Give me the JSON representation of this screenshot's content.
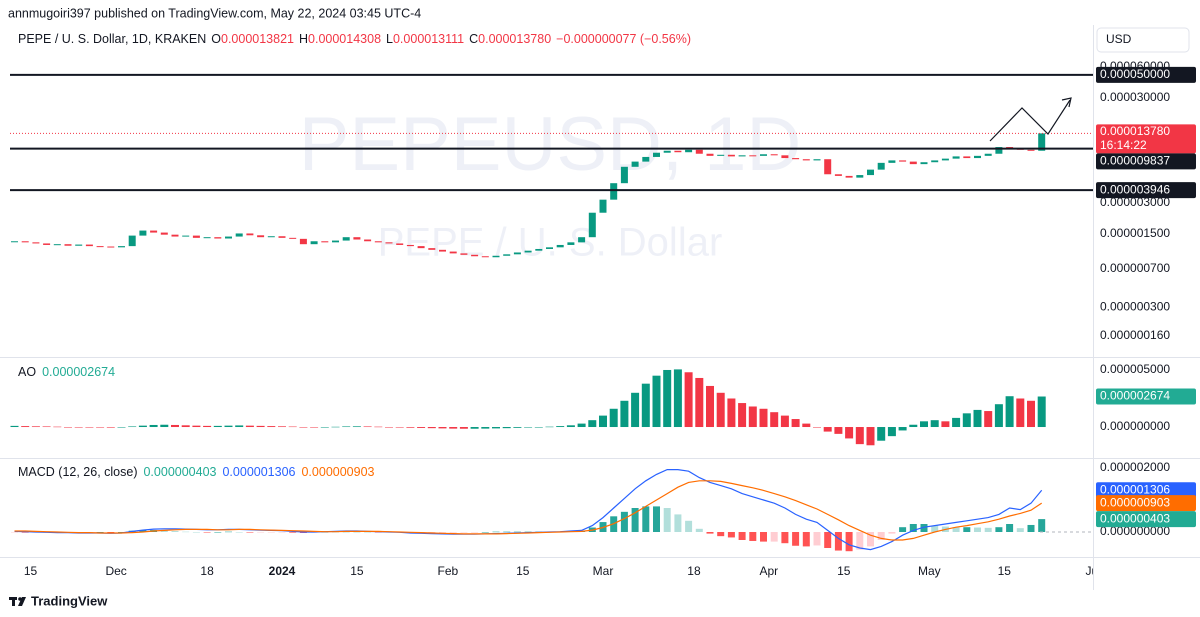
{
  "header": "annmugoiri397 published on TradingView.com, May 22, 2024 03:45 UTC-4",
  "currency": "USD",
  "footer": "TradingView",
  "chart_data": [
    {
      "type": "candlestick",
      "title": "PEPE / U. S. Dollar, 1D, KRAKEN",
      "ohlc": [
        {
          "key": "O",
          "value": 1.3821e-05,
          "label": "0.000013821"
        },
        {
          "key": "H",
          "value": 1.4308e-05,
          "label": "0.000014308"
        },
        {
          "key": "L",
          "value": 1.3111e-05,
          "label": "0.000013111"
        },
        {
          "key": "C",
          "value": 1.378e-05,
          "label": "0.000013780"
        }
      ],
      "change": "−0.000000077 (−0.56%)",
      "legend_color": "#f23645",
      "countdown": "16:14:22",
      "watermark": [
        "PEPEUSD, 1D",
        "PEPE / U. S. Dollar"
      ],
      "values": [
        1.28e-06,
        1.25e-06,
        1.22e-06,
        1.18e-06,
        1.2e-06,
        1.16e-06,
        1.19e-06,
        1.15e-06,
        1.14e-06,
        1.12e-06,
        1.15e-06,
        1.45e-06,
        1.62e-06,
        1.55e-06,
        1.48e-06,
        1.42e-06,
        1.45e-06,
        1.38e-06,
        1.4e-06,
        1.36e-06,
        1.42e-06,
        1.52e-06,
        1.46e-06,
        1.4e-06,
        1.43e-06,
        1.38e-06,
        1.35e-06,
        1.2e-06,
        1.28e-06,
        1.25e-06,
        1.3e-06,
        1.4e-06,
        1.33e-06,
        1.28e-06,
        1.25e-06,
        1.22e-06,
        1.18e-06,
        1.15e-06,
        1.1e-06,
        1.06e-06,
        1.02e-06,
        9.8e-07,
        9.5e-07,
        9.2e-07,
        9e-07,
        9.3e-07,
        9.6e-07,
        1e-06,
        1.04e-06,
        1.08e-06,
        1.12e-06,
        1.18e-06,
        1.25e-06,
        1.4e-06,
        2.4e-06,
        3.2e-06,
        4.6e-06,
        6.6e-06,
        7.4e-06,
        8.2e-06,
        9e-06,
        9.4e-06,
        9.1e-06,
        9.6e-06,
        8.8e-06,
        8.4e-06,
        8.6e-06,
        8.3e-06,
        8.5e-06,
        8.4e-06,
        8.7e-06,
        8.5e-06,
        8e-06,
        7.8e-06,
        7.6e-06,
        7.8e-06,
        5.6e-06,
        5.4e-06,
        5.2e-06,
        5.5e-06,
        6.2e-06,
        7.2e-06,
        7.6e-06,
        7.4e-06,
        7e-06,
        7.3e-06,
        7.6e-06,
        7.9e-06,
        8.3e-06,
        8e-06,
        8.4e-06,
        8.8e-06,
        1.02e-05,
        9.9e-06,
        9.6e-06,
        9.4e-06,
        1.378e-05
      ],
      "up_color": "#089981",
      "down_color": "#f23645",
      "log_scale": true,
      "ylim": [
        1e-07,
        0.00015
      ],
      "yticks": [
        {
          "value": 6e-05,
          "label": "0.000060000"
        },
        {
          "value": 3e-05,
          "label": "0.000030000"
        },
        {
          "value": 3e-06,
          "label": "0.000003000"
        },
        {
          "value": 1.5e-06,
          "label": "0.000001500"
        },
        {
          "value": 7e-07,
          "label": "0.000000700"
        },
        {
          "value": 3e-07,
          "label": "0.000000300"
        },
        {
          "value": 1.6e-07,
          "label": "0.000000160"
        }
      ],
      "levels": [
        {
          "value": 5e-05,
          "label": "0.000050000"
        },
        {
          "value": 9.837e-06,
          "label": "0.000009837"
        },
        {
          "value": 3.946e-06,
          "label": "0.000003946"
        }
      ],
      "xticks": [
        "15",
        "Dec",
        "18",
        "2024",
        "15",
        "Feb",
        "15",
        "Mar",
        "18",
        "Apr",
        "15",
        "May",
        "15",
        "Jun"
      ]
    },
    {
      "type": "histogram",
      "title": "AO",
      "values": [
        1e-07,
        8e-08,
        6e-08,
        5e-08,
        3e-08,
        0.0,
        -2e-08,
        -3e-08,
        -4e-08,
        -5e-08,
        -3e-08,
        5e-08,
        1.2e-07,
        1.8e-07,
        2e-07,
        1.8e-07,
        1.5e-07,
        1.2e-07,
        1e-07,
        1e-07,
        1.2e-07,
        1.4e-07,
        1.2e-07,
        1e-07,
        8e-08,
        6e-08,
        4e-08,
        0.0,
        -2e-08,
        0.0,
        2e-08,
        5e-08,
        6e-08,
        5e-08,
        3e-08,
        0.0,
        -3e-08,
        -6e-08,
        -8e-08,
        -1e-07,
        -1.2e-07,
        -1.4e-07,
        -1.5e-07,
        -1.5e-07,
        -1.4e-07,
        -1.2e-07,
        -1e-07,
        -7e-08,
        -4e-08,
        0.0,
        3e-08,
        8e-08,
        1.5e-07,
        3e-07,
        6e-07,
        1e-06,
        1.6e-06,
        2.3e-06,
        3e-06,
        3.8e-06,
        4.5e-06,
        5e-06,
        5.05e-06,
        4.8e-06,
        4.3e-06,
        3.6e-06,
        3e-06,
        2.5e-06,
        2.1e-06,
        1.8e-06,
        1.6e-06,
        1.3e-06,
        1e-06,
        7e-07,
        3e-07,
        0.0,
        -4e-07,
        -6e-07,
        -1e-06,
        -1.5e-06,
        -1.6e-06,
        -1.2e-06,
        -8e-07,
        -3e-07,
        2e-07,
        5e-07,
        6e-07,
        5e-07,
        8e-07,
        1.2e-06,
        1.5e-06,
        1.4e-06,
        2e-06,
        2.7e-06,
        2.5e-06,
        2.3e-06,
        2.674e-06
      ],
      "last_label": "0.000002674",
      "label_color": "#22ab94",
      "up_color": "#089981",
      "down_color": "#f23645",
      "ylim": [
        -2.54e-06,
        6.05e-06
      ],
      "yticks": [
        {
          "value": 5e-06,
          "label": "0.000005000"
        },
        {
          "value": 0,
          "label": "0.000000000"
        }
      ]
    },
    {
      "type": "macd",
      "title": "MACD (12, 26, close)",
      "histogram": {
        "values": [
          -1e-08,
          -2e-08,
          -2e-08,
          -2e-08,
          -2e-08,
          -1e-08,
          -1e-08,
          -1e-08,
          0.0,
          -1e-08,
          0.0,
          4e-08,
          6e-08,
          6e-08,
          5e-08,
          3e-08,
          1e-08,
          0.0,
          -1e-08,
          0.0,
          1e-08,
          0.0,
          -1e-08,
          -1e-08,
          -1e-08,
          -1e-08,
          -2e-08,
          -3e-08,
          -2e-08,
          0.0,
          1e-08,
          1e-08,
          1e-08,
          0.0,
          -1e-08,
          -1e-08,
          -1e-08,
          -2e-08,
          -2e-08,
          -2e-08,
          -2e-08,
          -2e-08,
          -1e-08,
          -1e-08,
          0.0,
          1e-08,
          1e-08,
          1e-08,
          1e-08,
          1e-08,
          1e-08,
          1e-08,
          2e-08,
          3e-08,
          1.4e-07,
          3.1e-07,
          4.9e-07,
          6.3e-07,
          7.5e-07,
          8e-07,
          8e-07,
          7.5e-07,
          5.5e-07,
          3.5e-07,
          1e-07,
          -5e-08,
          -1.3e-07,
          -1.7e-07,
          -2.5e-07,
          -2.8e-07,
          -3e-07,
          -3e-07,
          -3.5e-07,
          -4.3e-07,
          -4.5e-07,
          -4.2e-07,
          -5e-07,
          -5.8e-07,
          -6e-07,
          -5.5e-07,
          -4.5e-07,
          -2.5e-07,
          -5e-08,
          1.5e-07,
          2.5e-07,
          2.5e-07,
          2e-07,
          1.7e-07,
          1.5e-07,
          1.5e-07,
          1.4e-07,
          1.3e-07,
          1.5e-07,
          2.5e-07,
          1.2e-07,
          2.2e-07,
          4.03e-07
        ],
        "last_label": "0.000000403",
        "colors": [
          "#26a69a",
          "#b2dfdb",
          "#ffcdd2",
          "#ff5252"
        ],
        "label_color": "#22ab94"
      },
      "macd": {
        "values": [
          2e-08,
          1e-08,
          0.0,
          -1e-08,
          -2e-08,
          -2e-08,
          -3e-08,
          -3e-08,
          -3e-08,
          -4e-08,
          -3e-08,
          2e-08,
          6e-08,
          9e-08,
          1e-07,
          1e-07,
          9e-08,
          8e-08,
          7e-08,
          7e-08,
          8e-08,
          8e-08,
          7e-08,
          6e-08,
          5e-08,
          4e-08,
          2e-08,
          0.0,
          0.0,
          1e-08,
          2e-08,
          3e-08,
          3e-08,
          2e-08,
          1e-08,
          0.0,
          -1e-08,
          -3e-08,
          -4e-08,
          -5e-08,
          -6e-08,
          -7e-08,
          -7e-08,
          -7e-08,
          -6e-08,
          -5e-08,
          -4e-08,
          -3e-08,
          -2e-08,
          -1e-08,
          0.0,
          1e-08,
          3e-08,
          5e-08,
          2e-07,
          4.5e-07,
          7.5e-07,
          1.05e-06,
          1.35e-06,
          1.6e-06,
          1.8e-06,
          1.95e-06,
          1.95e-06,
          1.9e-06,
          1.7e-06,
          1.55e-06,
          1.45e-06,
          1.35e-06,
          1.2e-06,
          1.1e-06,
          1e-06,
          9e-07,
          7.5e-07,
          5.5e-07,
          4e-07,
          3e-07,
          5e-08,
          -2e-07,
          -4e-07,
          -5e-07,
          -5.5e-07,
          -4.5e-07,
          -3e-07,
          -1e-07,
          5e-08,
          1.5e-07,
          2e-07,
          2.5e-07,
          3e-07,
          3.5e-07,
          4e-07,
          4.5e-07,
          5.5e-07,
          7.5e-07,
          7e-07,
          9e-07,
          1.306e-06
        ],
        "last_label": "0.000001306",
        "color": "#2962ff"
      },
      "signal": {
        "values": [
          3e-08,
          3e-08,
          2e-08,
          1e-08,
          0.0,
          -1e-08,
          -2e-08,
          -2e-08,
          -3e-08,
          -3e-08,
          -3e-08,
          -2e-08,
          0.0,
          3e-08,
          5e-08,
          7e-08,
          8e-08,
          8e-08,
          8e-08,
          7e-08,
          7e-08,
          8e-08,
          8e-08,
          7e-08,
          6e-08,
          5e-08,
          4e-08,
          3e-08,
          2e-08,
          1e-08,
          1e-08,
          2e-08,
          2e-08,
          2e-08,
          2e-08,
          1e-08,
          0.0,
          -1e-08,
          -2e-08,
          -3e-08,
          -4e-08,
          -5e-08,
          -6e-08,
          -6e-08,
          -6e-08,
          -6e-08,
          -5e-08,
          -4e-08,
          -3e-08,
          -2e-08,
          -1e-08,
          0.0,
          1e-08,
          2e-08,
          6e-08,
          1.4e-07,
          2.6e-07,
          4.2e-07,
          6e-07,
          8e-07,
          1e-06,
          1.2e-06,
          1.4e-06,
          1.55e-06,
          1.6e-06,
          1.6e-06,
          1.58e-06,
          1.52e-06,
          1.45e-06,
          1.38e-06,
          1.3e-06,
          1.2e-06,
          1.1e-06,
          9.8e-07,
          8.5e-07,
          7.2e-07,
          5.5e-07,
          3.8e-07,
          2e-07,
          5e-08,
          -1e-07,
          -2e-07,
          -2.5e-07,
          -2.5e-07,
          -2e-07,
          -1e-07,
          0.0,
          8e-08,
          1.5e-07,
          2e-07,
          2.6e-07,
          3.2e-07,
          4e-07,
          5e-07,
          5.8e-07,
          6.8e-07,
          9.03e-07
        ],
        "last_label": "0.000000903",
        "color": "#ff6d00"
      },
      "ylim": [
        -7.5e-07,
        2.25e-06
      ],
      "yticks": [
        {
          "value": 2e-06,
          "label": "0.000002000"
        },
        {
          "value": 0,
          "label": "0.000000000"
        }
      ]
    }
  ]
}
